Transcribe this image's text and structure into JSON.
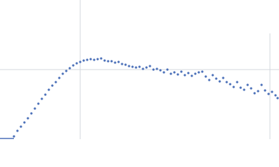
{
  "chart_data": {
    "type": "scatter",
    "color": "#4a6fb8",
    "xlim": [
      0,
      400
    ],
    "ylim": [
      0,
      200
    ],
    "x": [
      20,
      25,
      30,
      35,
      40,
      45,
      50,
      55,
      60,
      65,
      70,
      75,
      80,
      85,
      90,
      95,
      100,
      105,
      110,
      115,
      120,
      125,
      130,
      135,
      140,
      145,
      150,
      155,
      160,
      165,
      170,
      175,
      180,
      185,
      190,
      195,
      200,
      205,
      210,
      215,
      220,
      225,
      230,
      235,
      240,
      245,
      250,
      255,
      260,
      265,
      270,
      275,
      280,
      285,
      290,
      295,
      300,
      305,
      310,
      315,
      320,
      325,
      330,
      335,
      340,
      345,
      350,
      355,
      360,
      365,
      370,
      375,
      380,
      385,
      390,
      395,
      398
    ],
    "values": [
      4,
      12,
      18,
      24,
      30,
      37,
      44,
      51,
      58,
      64,
      71,
      77,
      82,
      88,
      94,
      98,
      102,
      106,
      109,
      111,
      113,
      114,
      115,
      114,
      115,
      116,
      113,
      112,
      112,
      110,
      111,
      108,
      107,
      105,
      104,
      103,
      104,
      101,
      103,
      105,
      100,
      101,
      99,
      96,
      100,
      94,
      96,
      93,
      97,
      92,
      95,
      91,
      94,
      96,
      97,
      90,
      85,
      92,
      87,
      83,
      88,
      82,
      79,
      75,
      82,
      74,
      71,
      78,
      73,
      66,
      69,
      78,
      70,
      65,
      68,
      63,
      59
    ]
  }
}
